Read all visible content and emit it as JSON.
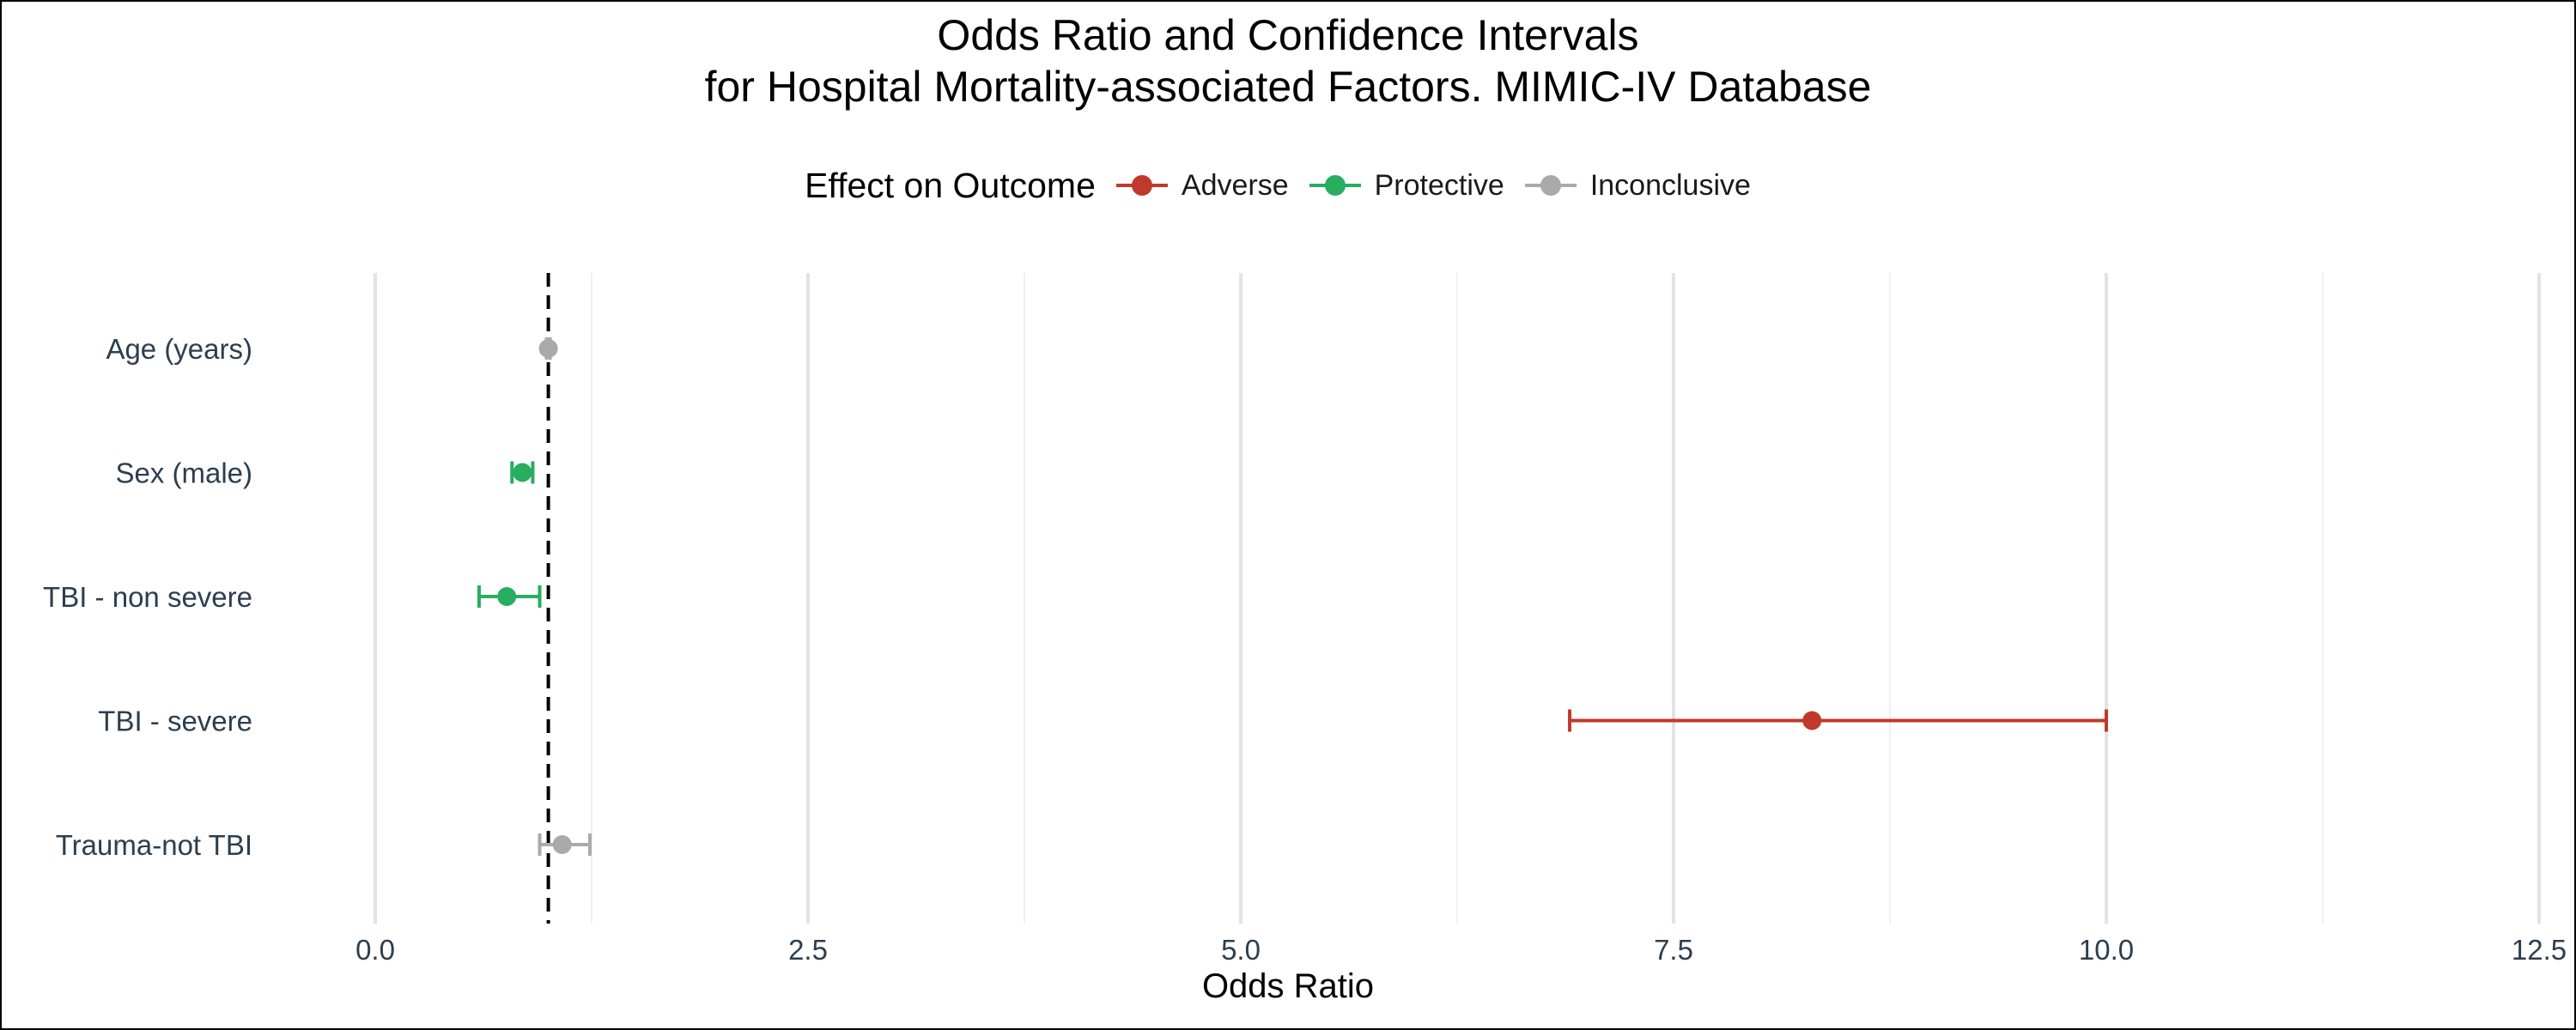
{
  "chart_data": {
    "type": "scatter",
    "subtype": "forest-plot",
    "title": [
      "Odds Ratio and Confidence Intervals",
      "for Hospital Mortality-associated Factors. MIMIC-IV Database"
    ],
    "xlabel": "Odds Ratio",
    "ylabel": "",
    "xlim": [
      0,
      12.5
    ],
    "xticks": [
      0.0,
      2.5,
      5.0,
      7.5,
      10.0,
      12.5
    ],
    "xtick_labels": [
      "0.0",
      "2.5",
      "5.0",
      "7.5",
      "10.0",
      "12.5"
    ],
    "minor_gridlines": [
      1.25,
      3.75,
      6.25,
      8.75,
      11.25
    ],
    "reference_line": 1.0,
    "grid": "vertical",
    "legend": {
      "title": "Effect on Outcome",
      "placement": "top",
      "entries": [
        {
          "label": "Adverse",
          "color": "#c0392b"
        },
        {
          "label": "Protective",
          "color": "#27ae60"
        },
        {
          "label": "Inconclusive",
          "color": "#aaaaaa"
        }
      ]
    },
    "series": [
      {
        "category": "Age (years)",
        "or": 1.0,
        "ci_low": 0.99,
        "ci_high": 1.01,
        "effect": "Inconclusive"
      },
      {
        "category": "Sex (male)",
        "or": 0.85,
        "ci_low": 0.79,
        "ci_high": 0.91,
        "effect": "Protective"
      },
      {
        "category": "TBI - non severe",
        "or": 0.76,
        "ci_low": 0.6,
        "ci_high": 0.95,
        "effect": "Protective"
      },
      {
        "category": "TBI - severe",
        "or": 8.3,
        "ci_low": 6.9,
        "ci_high": 10.0,
        "effect": "Adverse"
      },
      {
        "category": "Trauma-not TBI",
        "or": 1.08,
        "ci_low": 0.95,
        "ci_high": 1.24,
        "effect": "Inconclusive"
      }
    ]
  }
}
